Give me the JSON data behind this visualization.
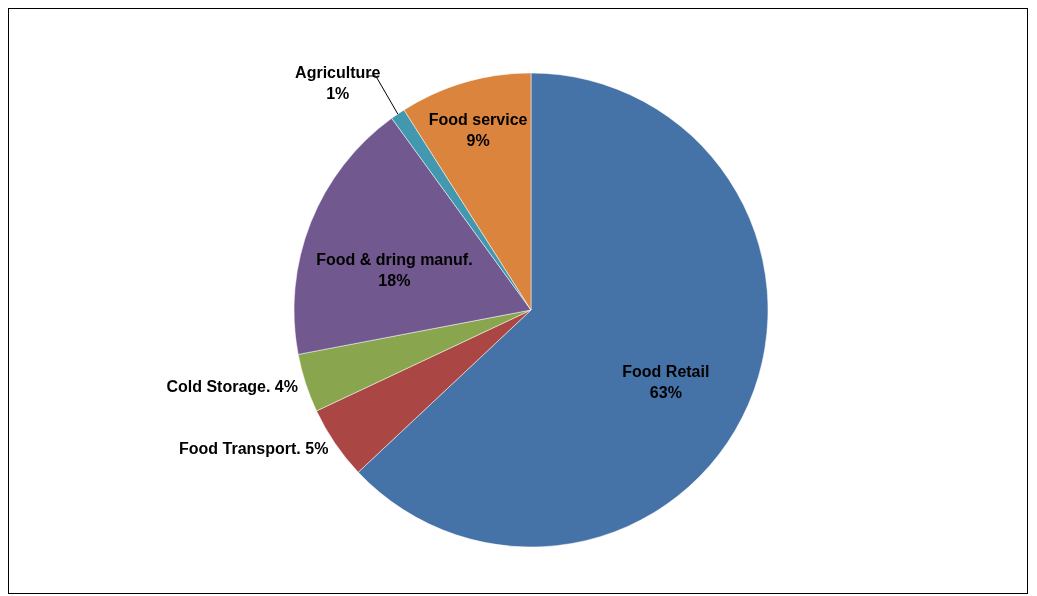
{
  "chart_data": {
    "type": "pie",
    "categories": [
      "Food Retail",
      "Food Transport.",
      "Cold Storage.",
      "Food & dring manuf.",
      "Agriculture",
      "Food service"
    ],
    "values": [
      63,
      5,
      4,
      18,
      1,
      9
    ],
    "value_labels": [
      "63%",
      "5%",
      "4%",
      "18%",
      "1%",
      "9%"
    ],
    "colors": [
      "#4572a7",
      "#aa4643",
      "#89a54e",
      "#71588f",
      "#4198af",
      "#db843d"
    ],
    "legend": false
  }
}
